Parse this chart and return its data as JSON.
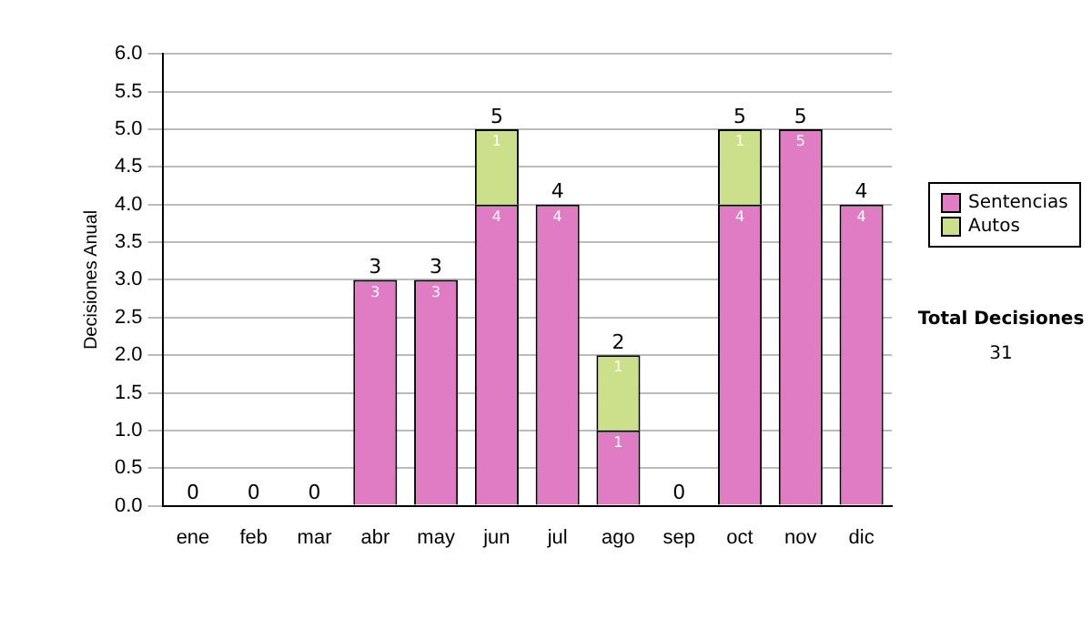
{
  "chart_data": {
    "type": "bar",
    "stacked": true,
    "ylabel": "Decisiones Anual",
    "categories": [
      "ene",
      "feb",
      "mar",
      "abr",
      "may",
      "jun",
      "jul",
      "ago",
      "sep",
      "oct",
      "nov",
      "dic"
    ],
    "series": [
      {
        "name": "Sentencias",
        "color": "#e07cc4",
        "values": [
          0,
          0,
          0,
          3,
          3,
          4,
          4,
          1,
          0,
          4,
          5,
          4
        ],
        "value_labels": [
          null,
          null,
          null,
          "3",
          "3",
          "4",
          "4",
          "1",
          null,
          "4",
          "5",
          "4"
        ]
      },
      {
        "name": "Autos",
        "color": "#cce08c",
        "values": [
          0,
          0,
          0,
          0,
          0,
          1,
          0,
          1,
          0,
          1,
          0,
          0
        ],
        "value_labels": [
          null,
          null,
          null,
          null,
          null,
          "1",
          null,
          "1",
          null,
          "1",
          null,
          null
        ]
      }
    ],
    "totals": [
      "0",
      "0",
      "0",
      "3",
      "3",
      "5",
      "4",
      "2",
      "0",
      "5",
      "5",
      "4"
    ],
    "ylim": [
      0,
      6
    ],
    "yticks": [
      {
        "value": 0,
        "label": "0.0"
      },
      {
        "value": 0.5,
        "label": "0.5"
      },
      {
        "value": 1,
        "label": "1.0"
      },
      {
        "value": 1.5,
        "label": "1.5"
      },
      {
        "value": 2,
        "label": "2.0"
      },
      {
        "value": 2.5,
        "label": "2.5"
      },
      {
        "value": 3,
        "label": "3.0"
      },
      {
        "value": 3.5,
        "label": "3.5"
      },
      {
        "value": 4,
        "label": "4.0"
      },
      {
        "value": 4.5,
        "label": "4.5"
      },
      {
        "value": 5,
        "label": "5.0"
      },
      {
        "value": 5.5,
        "label": "5.5"
      },
      {
        "value": 6,
        "label": "6.0"
      }
    ],
    "grid": "y",
    "legend": "right",
    "annotations": [
      "Total Decisiones",
      "31"
    ]
  }
}
